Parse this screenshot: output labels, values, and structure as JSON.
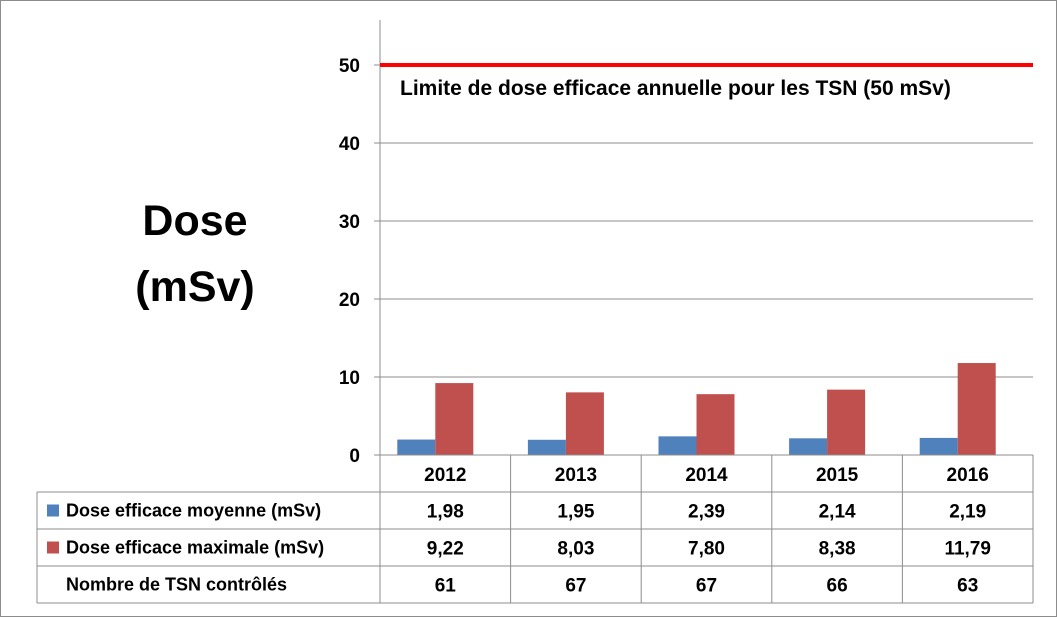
{
  "chart_data": {
    "type": "bar",
    "ylabel": [
      "Dose",
      "(mSv)"
    ],
    "categories": [
      "2012",
      "2013",
      "2014",
      "2015",
      "2016"
    ],
    "series": [
      {
        "name": "Dose efficace moyenne (mSv)",
        "color": "#4f81bd",
        "values": [
          1.98,
          1.95,
          2.39,
          2.14,
          2.19
        ],
        "labels": [
          "1,98",
          "1,95",
          "2,39",
          "2,14",
          "2,19"
        ]
      },
      {
        "name": "Dose efficace maximale (mSv)",
        "color": "#c0504d",
        "values": [
          9.22,
          8.03,
          7.8,
          8.38,
          11.79
        ],
        "labels": [
          "9,22",
          "8,03",
          "7,80",
          "8,38",
          "11,79"
        ]
      }
    ],
    "table_rows": [
      {
        "name": "Nombre de TSN contrôlés",
        "values": [
          "61",
          "67",
          "67",
          "66",
          "63"
        ]
      }
    ],
    "ylim": [
      0,
      55
    ],
    "yticks": [
      "0",
      "10",
      "20",
      "30",
      "40",
      "50"
    ],
    "grid": true,
    "reference_line": {
      "value": 50,
      "color": "#ff0000",
      "label": "Limite de dose efficace annuelle pour les TSN (50 mSv)"
    }
  }
}
